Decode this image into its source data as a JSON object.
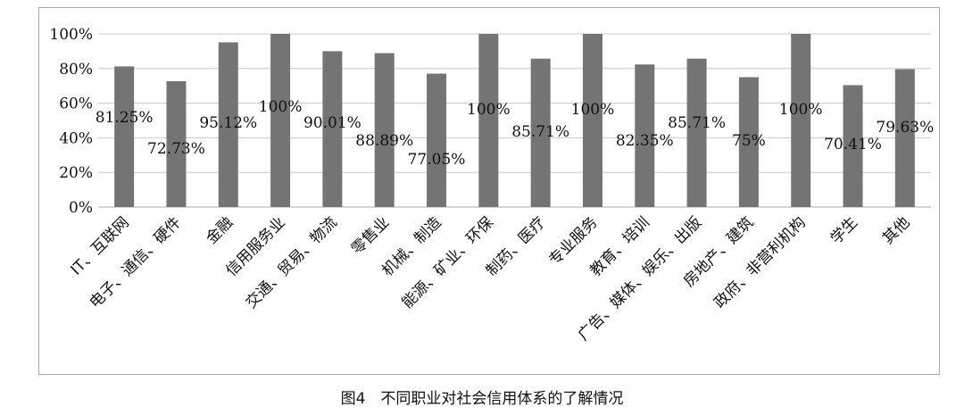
{
  "caption": "图4　不同职业对社会信用体系的了解情况",
  "chart_data": {
    "type": "bar",
    "categories": [
      "IT、互联网",
      "电子、通信、硬件",
      "金融",
      "信用服务业",
      "交通、贸易、物流",
      "零售业",
      "机械、制造",
      "能源、矿业、环保",
      "制药、医疗",
      "专业服务",
      "教育、培训",
      "广告、媒体、娱乐、出版",
      "房地产、建筑",
      "政府、非营利机构",
      "学生",
      "其他"
    ],
    "values": [
      81.25,
      72.73,
      95.12,
      100,
      90.01,
      88.89,
      77.05,
      100,
      85.71,
      100,
      82.35,
      85.71,
      75,
      100,
      70.41,
      79.63
    ],
    "data_labels": [
      "81.25%",
      "72.73%",
      "95.12%",
      "100%",
      "90.01%",
      "88.89%",
      "77.05%",
      "100%",
      "85.71%",
      "100%",
      "82.35%",
      "85.71%",
      "75%",
      "100%",
      "70.41%",
      "79.63%"
    ],
    "yticks": [
      "0%",
      "20%",
      "40%",
      "60%",
      "80%",
      "100%"
    ],
    "ylim": [
      0,
      100
    ],
    "grid": true,
    "legend": "none",
    "bar_color": "#747474",
    "grid_color": "#c8c8c8"
  }
}
